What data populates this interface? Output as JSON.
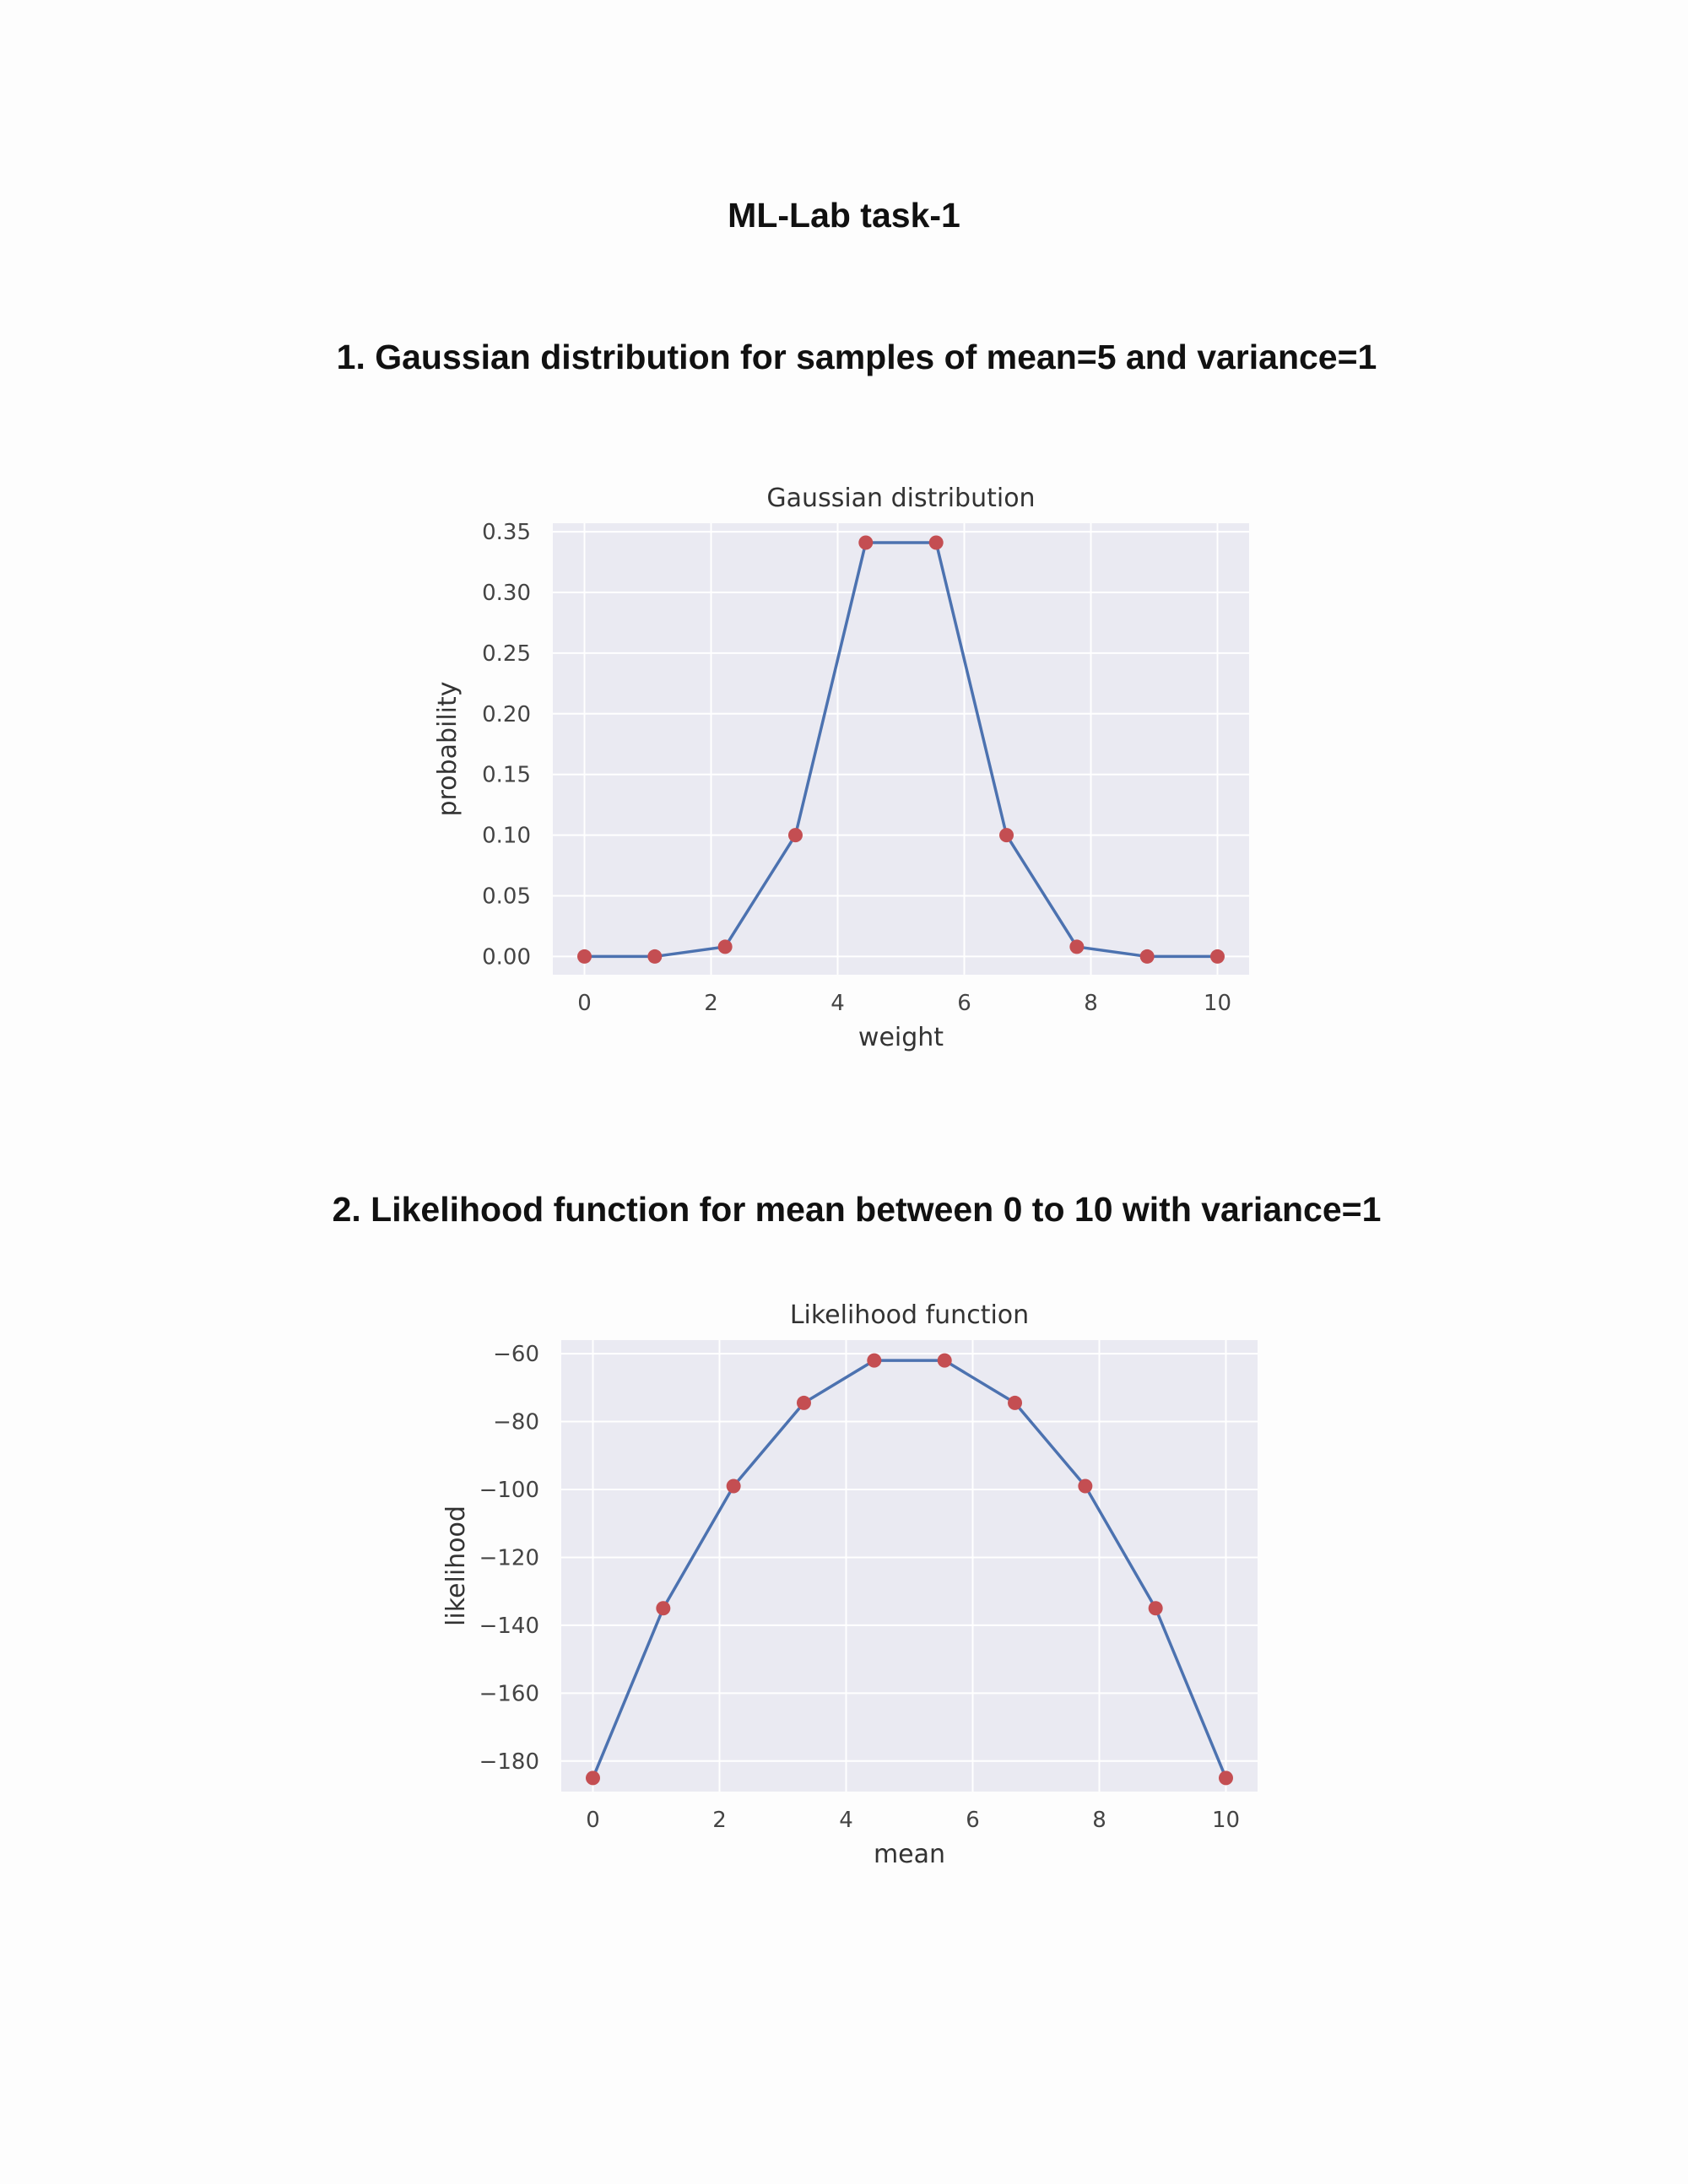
{
  "document": {
    "title": "ML-Lab task-1",
    "sections": [
      {
        "heading": "1.  Gaussian distribution for samples of mean=5 and variance=1"
      },
      {
        "heading": "2.  Likelihood function for mean between 0 to 10 with variance=1"
      }
    ]
  },
  "chart_data": [
    {
      "type": "line",
      "title": "Gaussian distribution",
      "xlabel": "weight",
      "ylabel": "probability",
      "xlim": [
        -0.5,
        10.5
      ],
      "ylim": [
        -0.015,
        0.357
      ],
      "xticks": [
        0,
        2,
        4,
        6,
        8,
        10
      ],
      "xtick_labels": [
        "0",
        "2",
        "4",
        "6",
        "8",
        "10"
      ],
      "yticks": [
        0.0,
        0.05,
        0.1,
        0.15,
        0.2,
        0.25,
        0.3,
        0.35
      ],
      "ytick_labels": [
        "0.00",
        "0.05",
        "0.10",
        "0.15",
        "0.20",
        "0.25",
        "0.30",
        "0.35"
      ],
      "grid": true,
      "colors": {
        "background": "#eaeaf2",
        "grid": "#ffffff",
        "line": "#4c72b0",
        "marker": "#c44e52"
      },
      "x": [
        0,
        1.111,
        2.222,
        3.333,
        4.444,
        5.556,
        6.667,
        7.778,
        8.889,
        10
      ],
      "y": [
        0.0,
        0.0,
        0.008,
        0.1,
        0.341,
        0.341,
        0.1,
        0.008,
        0.0,
        0.0
      ]
    },
    {
      "type": "line",
      "title": "Likelihood function",
      "xlabel": "mean",
      "ylabel": "likelihood",
      "xlim": [
        -0.5,
        10.5
      ],
      "ylim": [
        -189,
        -56
      ],
      "xticks": [
        0,
        2,
        4,
        6,
        8,
        10
      ],
      "xtick_labels": [
        "0",
        "2",
        "4",
        "6",
        "8",
        "10"
      ],
      "yticks": [
        -180,
        -160,
        -140,
        -120,
        -100,
        -80,
        -60
      ],
      "ytick_labels": [
        "−180",
        "−160",
        "−140",
        "−120",
        "−100",
        "−80",
        "−60"
      ],
      "grid": true,
      "colors": {
        "background": "#eaeaf2",
        "grid": "#ffffff",
        "line": "#4c72b0",
        "marker": "#c44e52"
      },
      "x": [
        0,
        1.111,
        2.222,
        3.333,
        4.444,
        5.556,
        6.667,
        7.778,
        8.889,
        10
      ],
      "y": [
        -185,
        -135,
        -99,
        -74.5,
        -62,
        -62,
        -74.5,
        -99,
        -135,
        -185
      ]
    }
  ]
}
